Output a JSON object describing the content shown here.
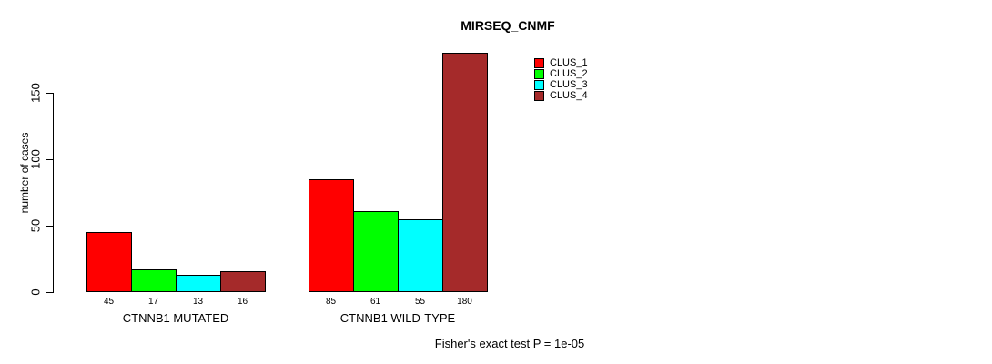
{
  "chart_data": {
    "type": "bar",
    "title": "MIRSEQ_CNMF",
    "ylabel": "number of cases",
    "xlabel": "",
    "ylim": [
      0,
      150
    ],
    "yticks": [
      "0",
      "50",
      "100",
      "150"
    ],
    "grid": false,
    "categories": [
      "CTNNB1 MUTATED",
      "CTNNB1 WILD-TYPE"
    ],
    "series": [
      {
        "name": "CLUS_1",
        "color": "#ff0000",
        "values": [
          45,
          85
        ]
      },
      {
        "name": "CLUS_2",
        "color": "#00ff00",
        "values": [
          17,
          61
        ]
      },
      {
        "name": "CLUS_3",
        "color": "#00ffff",
        "values": [
          13,
          55
        ]
      },
      {
        "name": "CLUS_4",
        "color": "#a52a2a",
        "values": [
          16,
          180
        ]
      }
    ],
    "bar_value_labels": [
      [
        "45",
        "17",
        "13",
        "16"
      ],
      [
        "85",
        "61",
        "55",
        "180"
      ]
    ],
    "legend_position": "top-right",
    "annotation": "Fisher's exact test P = 1e-05",
    "background": "#ffffff"
  }
}
